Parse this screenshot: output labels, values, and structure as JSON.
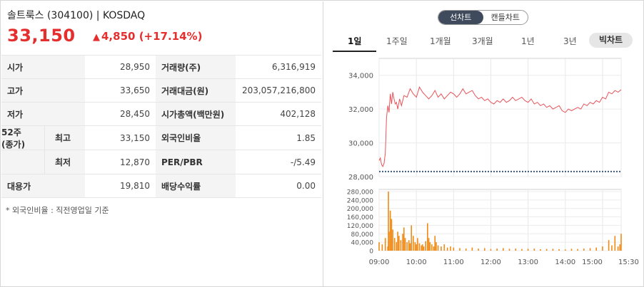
{
  "header": {
    "stock_name": "솔트룩스 (304100) | KOSDAQ",
    "price": "33,150",
    "change": "4,850",
    "change_pct": "(+17.14%)",
    "up_color": "#e52e2e"
  },
  "table": {
    "rows": [
      {
        "l1": "시가",
        "v1": "28,950",
        "l2": "거래량(주)",
        "v2": "6,316,919"
      },
      {
        "l1": "고가",
        "v1": "33,650",
        "l2": "거래대금(원)",
        "v2": "203,057,216,800"
      },
      {
        "l1": "저가",
        "v1": "28,450",
        "l2": "시가총액(백만원)",
        "v2": "402,128"
      },
      {
        "l1": "최고",
        "v1": "33,150",
        "l2": "외국인비율",
        "v2": "1.85"
      },
      {
        "l1": "최저",
        "v1": "12,870",
        "l2": "PER/PBR",
        "v2": "-/5.49"
      },
      {
        "l1": "대용가",
        "v1": "19,810",
        "l2": "배당수익률",
        "v2": "0.00"
      }
    ],
    "week52_label_1": "52주",
    "week52_label_2": "(종가)"
  },
  "footnote": "* 외국인비율 : 직전영업일 기준",
  "chart_toggle": {
    "line": "선차트",
    "candle": "캔들차트"
  },
  "periods": [
    "1일",
    "1주일",
    "1개월",
    "3개월",
    "1년",
    "3년",
    "빅차트"
  ],
  "chart_data": {
    "type": "line",
    "line_color": "#e8545a",
    "volume_color": "#f08a14",
    "price_axis": {
      "min": 28000,
      "max": 35000,
      "ticks": [
        "34,000",
        "32,000",
        "30,000",
        "28,000"
      ],
      "tick_values": [
        34000,
        32000,
        30000,
        28000
      ]
    },
    "prev_close": 28300,
    "volume_axis": {
      "min": 0,
      "max": 290000,
      "ticks": [
        "280,000",
        "240,000",
        "200,000",
        "160,000",
        "120,000",
        "80,000",
        "40,000",
        "0"
      ],
      "tick_values": [
        280000,
        240000,
        200000,
        160000,
        120000,
        80000,
        40000,
        0
      ]
    },
    "x_labels": [
      "09:00",
      "10:00",
      "11:00",
      "12:00",
      "13:00",
      "14:00",
      "15:00",
      "15:30"
    ],
    "x_minutes": [
      0,
      60,
      120,
      180,
      240,
      300,
      360,
      390
    ],
    "price_series": {
      "minutes": [
        0,
        2,
        4,
        6,
        8,
        10,
        12,
        14,
        16,
        18,
        20,
        22,
        24,
        26,
        28,
        30,
        33,
        36,
        40,
        45,
        50,
        55,
        60,
        65,
        70,
        75,
        80,
        85,
        90,
        95,
        100,
        105,
        110,
        115,
        120,
        125,
        130,
        135,
        140,
        145,
        150,
        155,
        160,
        165,
        170,
        175,
        180,
        185,
        190,
        195,
        200,
        205,
        210,
        215,
        220,
        225,
        230,
        235,
        240,
        245,
        250,
        255,
        260,
        265,
        270,
        275,
        280,
        285,
        290,
        295,
        300,
        305,
        310,
        315,
        320,
        325,
        330,
        335,
        340,
        345,
        350,
        355,
        360,
        365,
        370,
        375,
        380,
        385,
        390
      ],
      "values": [
        28950,
        29100,
        28700,
        28600,
        28800,
        29400,
        31500,
        32200,
        31800,
        32900,
        32300,
        33000,
        32600,
        32300,
        32400,
        32000,
        32600,
        32200,
        32800,
        32700,
        33200,
        32900,
        32700,
        33300,
        33000,
        32800,
        32600,
        32800,
        33100,
        32700,
        32900,
        32600,
        32800,
        33000,
        32900,
        32700,
        32900,
        33200,
        32900,
        33000,
        33100,
        32800,
        32600,
        32700,
        32500,
        32600,
        32400,
        32300,
        32500,
        32400,
        32600,
        32400,
        32500,
        32700,
        32500,
        32600,
        32700,
        32500,
        32400,
        32600,
        32300,
        32400,
        32200,
        32300,
        32100,
        32200,
        32000,
        32100,
        32200,
        31900,
        31800,
        32000,
        31900,
        32000,
        32100,
        32000,
        32300,
        32200,
        32400,
        32300,
        32500,
        32400,
        32700,
        32600,
        33000,
        32900,
        33100,
        33000,
        33150
      ]
    },
    "volume_series": {
      "minutes": [
        0,
        5,
        10,
        14,
        15,
        16,
        18,
        20,
        22,
        25,
        28,
        30,
        32,
        35,
        38,
        40,
        42,
        45,
        48,
        50,
        52,
        55,
        58,
        60,
        62,
        65,
        68,
        70,
        72,
        75,
        78,
        80,
        82,
        85,
        88,
        90,
        92,
        95,
        100,
        105,
        110,
        115,
        120,
        130,
        140,
        150,
        160,
        170,
        180,
        190,
        200,
        210,
        220,
        230,
        240,
        250,
        260,
        270,
        280,
        290,
        300,
        310,
        320,
        330,
        340,
        350,
        360,
        370,
        375,
        380,
        385,
        388,
        390
      ],
      "values": [
        40000,
        30000,
        60000,
        20000,
        280000,
        90000,
        190000,
        150000,
        100000,
        60000,
        40000,
        90000,
        70000,
        50000,
        80000,
        110000,
        60000,
        40000,
        50000,
        35000,
        120000,
        70000,
        40000,
        30000,
        60000,
        35000,
        25000,
        30000,
        20000,
        45000,
        130000,
        60000,
        40000,
        30000,
        20000,
        70000,
        40000,
        25000,
        20000,
        30000,
        15000,
        20000,
        15000,
        12000,
        10000,
        15000,
        10000,
        12000,
        8000,
        10000,
        12000,
        9000,
        10000,
        8000,
        9000,
        10000,
        7000,
        8000,
        9000,
        7000,
        6000,
        9000,
        8000,
        10000,
        12000,
        15000,
        20000,
        50000,
        25000,
        70000,
        20000,
        30000,
        80000
      ]
    }
  }
}
